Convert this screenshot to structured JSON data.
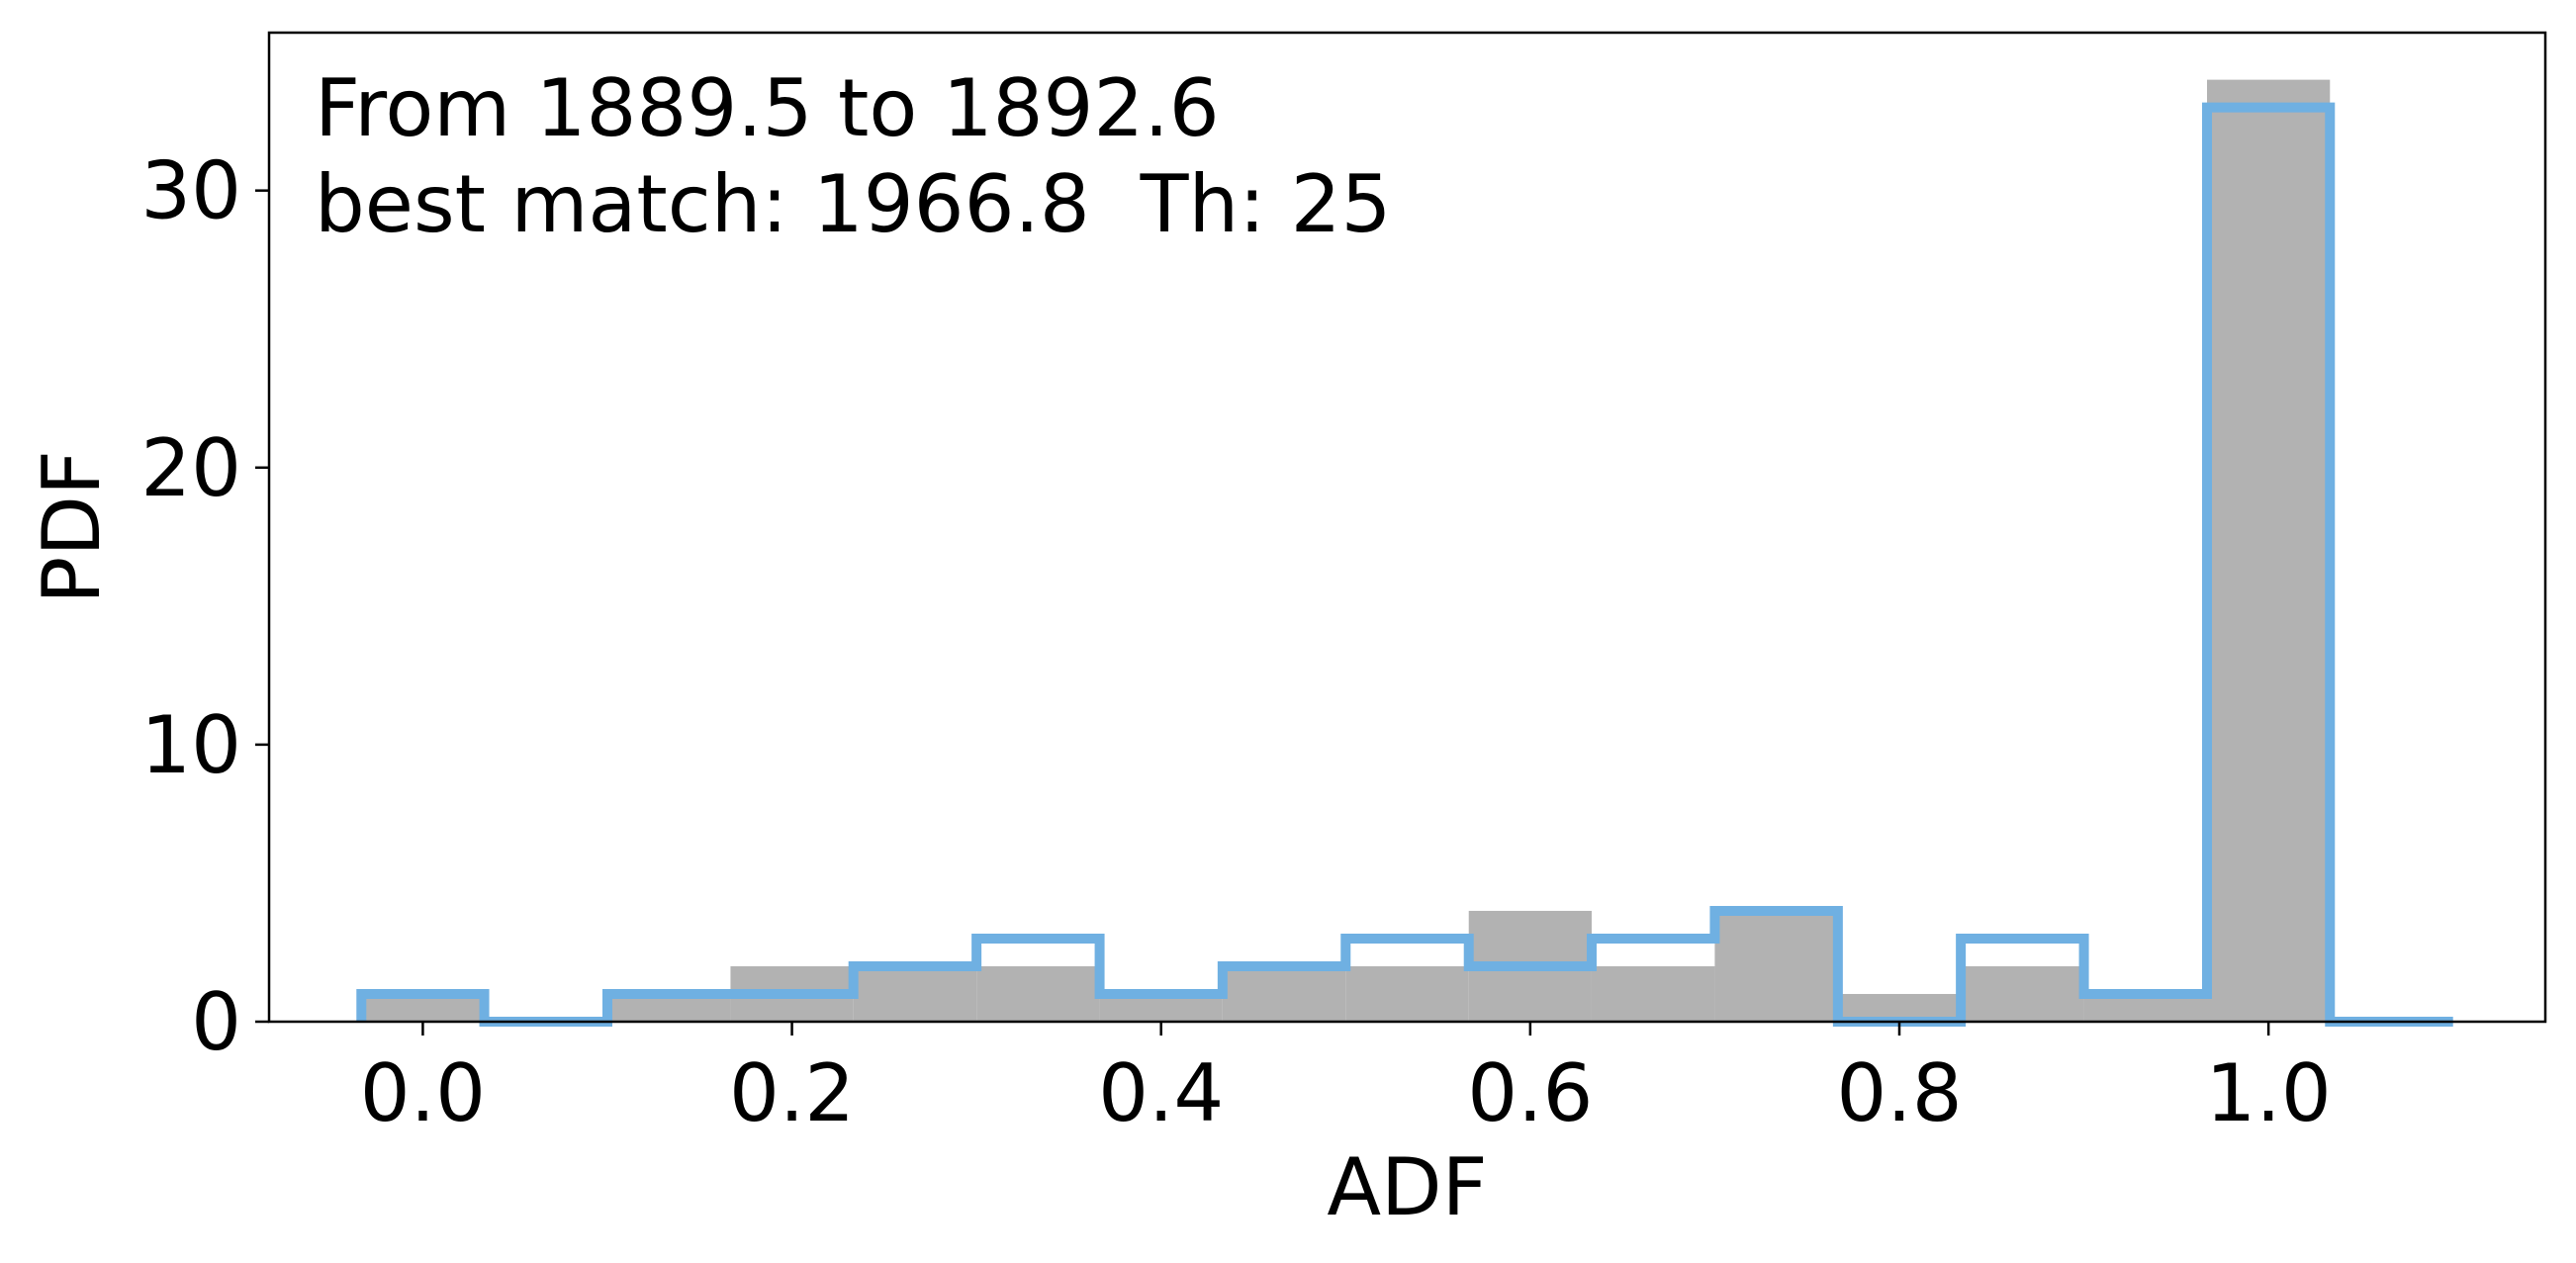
{
  "chart_data": {
    "type": "bar",
    "title": "",
    "xlabel": "ADF",
    "ylabel": "PDF",
    "xlim": [
      -0.0833,
      1.15
    ],
    "ylim": [
      0,
      35.7
    ],
    "x_ticks": [
      0.0,
      0.2,
      0.4,
      0.6,
      0.8,
      1.0
    ],
    "x_tick_labels": [
      "0.0",
      "0.2",
      "0.4",
      "0.6",
      "0.8",
      "1.0"
    ],
    "y_ticks": [
      0,
      10,
      20,
      30
    ],
    "y_tick_labels": [
      "0",
      "10",
      "20",
      "30"
    ],
    "grid": false,
    "annotations": {
      "line1": "From 1889.5 to 1892.6",
      "line2": "best match: 1966.8  Th: 25"
    },
    "series": [
      {
        "style": "filled",
        "color": "#b2b2b2",
        "bin_edges": [
          -0.0333,
          0.0333,
          0.1,
          0.1667,
          0.2333,
          0.3,
          0.3667,
          0.4333,
          0.5,
          0.5667,
          0.6333,
          0.7,
          0.7667,
          0.8333,
          0.9,
          0.9667,
          1.0333,
          1.1
        ],
        "values": [
          1,
          0,
          1,
          2,
          2,
          2,
          1,
          2,
          2,
          4,
          2,
          4,
          1,
          2,
          1,
          34,
          0
        ]
      },
      {
        "style": "step",
        "color": "#6fb0e2",
        "bin_edges": [
          -0.0333,
          0.0333,
          0.1,
          0.1667,
          0.2333,
          0.3,
          0.3667,
          0.4333,
          0.5,
          0.5667,
          0.6333,
          0.7,
          0.7667,
          0.8333,
          0.9,
          0.9667,
          1.0333,
          1.1
        ],
        "values": [
          1,
          0,
          1,
          1,
          2,
          3,
          1,
          2,
          3,
          2,
          3,
          4,
          0,
          3,
          1,
          33,
          0
        ]
      }
    ]
  }
}
